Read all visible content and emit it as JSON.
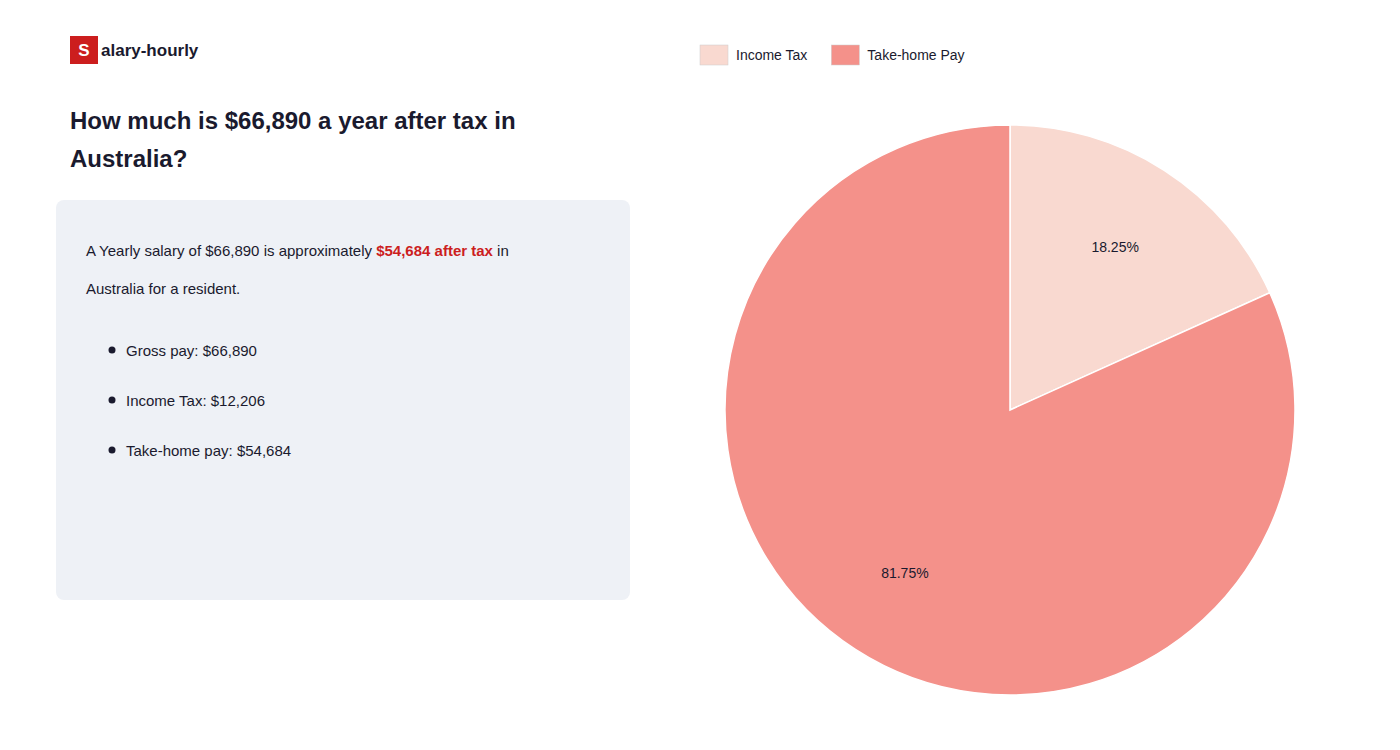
{
  "chart_data": {
    "type": "pie",
    "title": [
      "How much is $66,890 a year after tax in",
      "Australia?"
    ],
    "categories": [
      "Income Tax",
      "Take-home Pay"
    ],
    "values": [
      18.25,
      81.75
    ],
    "value_labels": [
      "18.25%",
      "81.75%"
    ],
    "colors": [
      "#f9d9d0",
      "#f4918a"
    ],
    "data_labels": true,
    "legend": "upper-left",
    "annotations": [
      [
        "S",
        "alary-hourly"
      ],
      [
        "A Yearly salary of $66,890 is approximately ",
        "$54,684 after tax",
        " in"
      ],
      [
        "Australia for a resident."
      ],
      [
        "Gross pay: $66,890"
      ],
      [
        "Income Tax: $12,206"
      ],
      [
        "Take-home pay: $54,684"
      ]
    ]
  }
}
